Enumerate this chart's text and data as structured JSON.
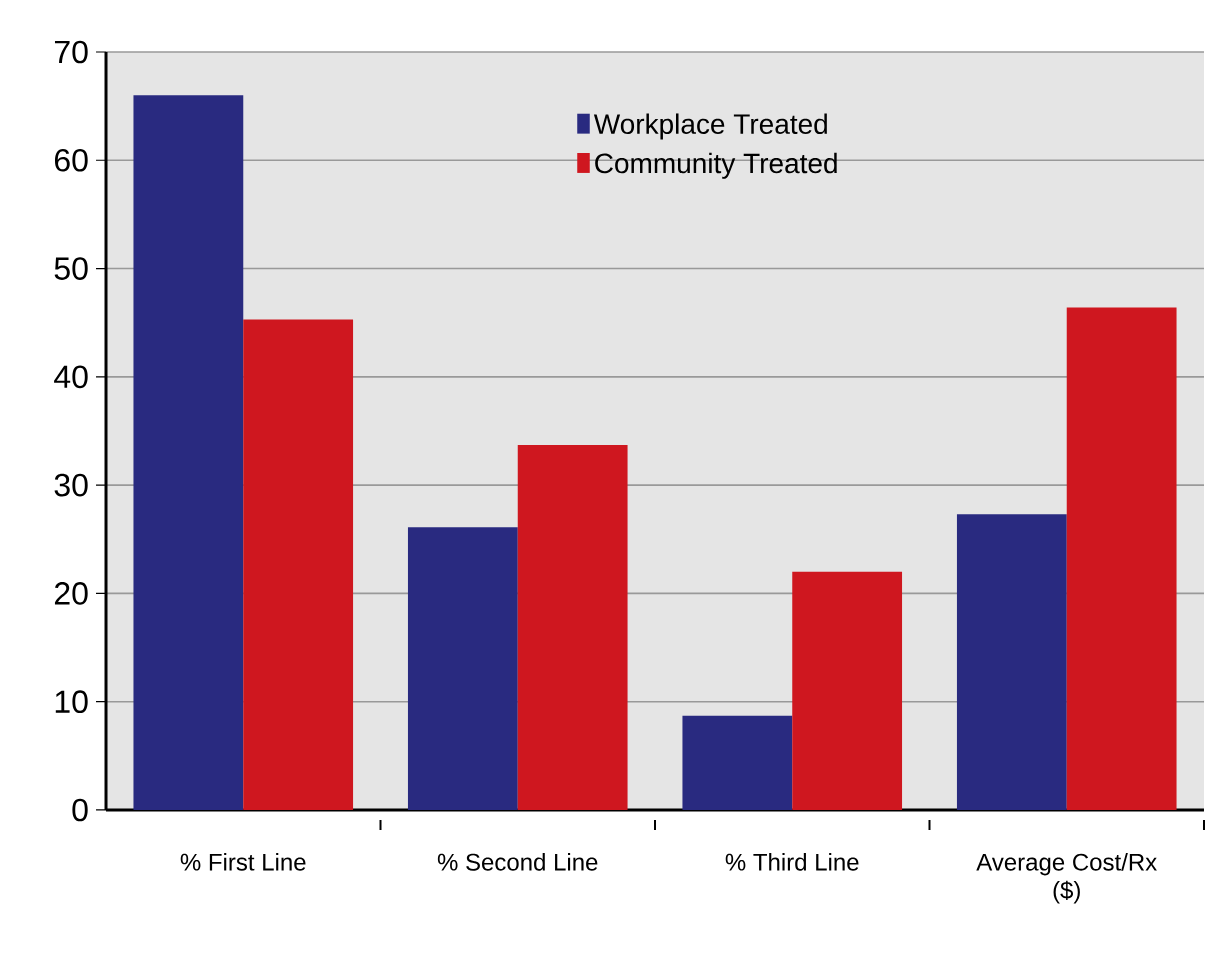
{
  "chart_data": {
    "type": "bar",
    "categories": [
      "% First Line",
      "% Second Line",
      "% Third Line",
      "Average Cost/Rx ($)"
    ],
    "series": [
      {
        "name": "Workplace Treated",
        "color": "#292a80",
        "values": [
          66,
          26.1,
          8.7,
          27.3
        ]
      },
      {
        "name": "Community Treated",
        "color": "#cf171f",
        "values": [
          45.3,
          33.7,
          22.0,
          46.4
        ]
      }
    ],
    "ylim": [
      0,
      70
    ],
    "yticks": [
      0,
      10,
      20,
      30,
      40,
      50,
      60,
      70
    ],
    "grid": "y",
    "legend": "top"
  }
}
